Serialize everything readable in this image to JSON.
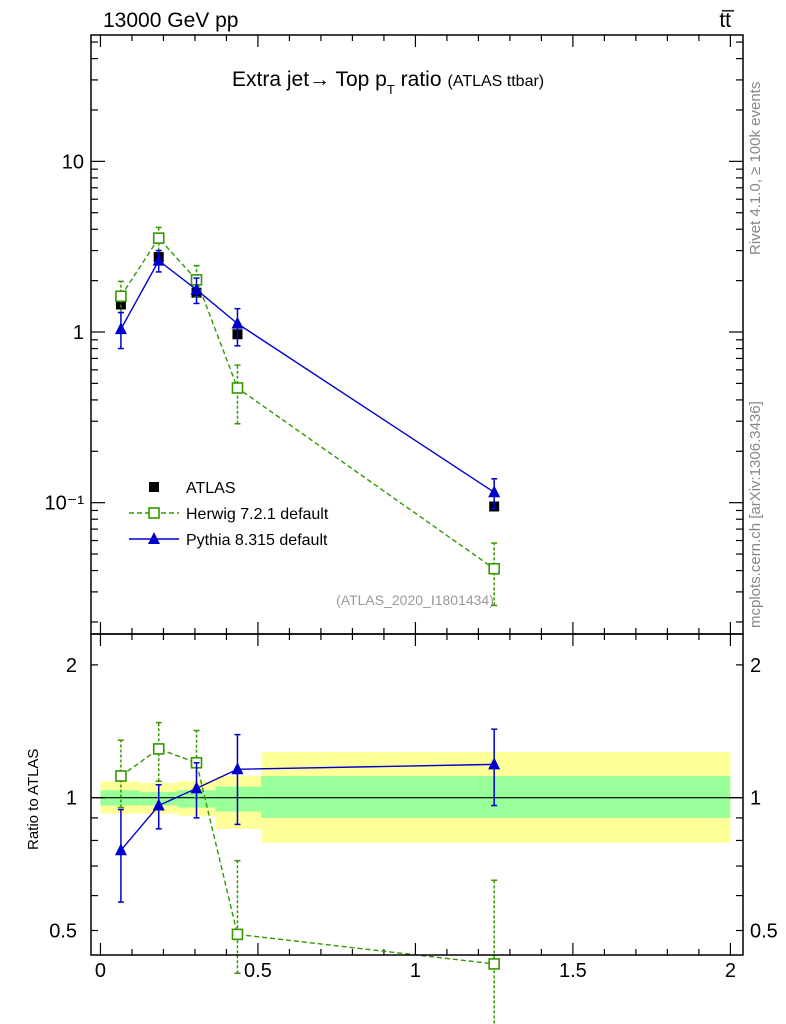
{
  "header": {
    "left": "13000 GeV pp",
    "right": "tt̅"
  },
  "side": {
    "rivet": "Rivet 4.1.0, ≥ 100k events",
    "mcplots": "mcplots.cern.ch [arXiv:1306.3436]"
  },
  "chart_data": [
    {
      "type": "scatter",
      "panel": "main",
      "title_main": "Extra jet→ Top p",
      "title_sub": "T",
      "title_rest": " ratio",
      "title_tag": "(ATLAS ttbar)",
      "analysis": "(ATLAS_2020_I1801434)",
      "yscale": "log",
      "ylim": [
        0.017,
        55
      ],
      "xlim": [
        -0.03,
        2.04
      ],
      "ytick_labels": [
        "10",
        "1",
        "10⁻¹"
      ],
      "ytick_values": [
        10,
        1,
        0.1
      ],
      "legend_position": "bottom-left",
      "x": [
        0.065,
        0.185,
        0.305,
        0.435,
        1.25
      ],
      "series": [
        {
          "name": "ATLAS",
          "color": "#000000",
          "marker": "filled-square",
          "values": [
            1.45,
            2.75,
            1.7,
            0.97,
            0.095
          ]
        },
        {
          "name": "Herwig 7.2.1 default",
          "color": "#339900",
          "marker": "open-square",
          "linestyle": "dashed",
          "values": [
            1.62,
            3.55,
            2.02,
            0.47,
            0.041
          ],
          "err_low": [
            1.3,
            3.0,
            1.6,
            0.29,
            0.025
          ],
          "err_high": [
            1.98,
            4.1,
            2.45,
            0.64,
            0.058
          ]
        },
        {
          "name": "Pythia 8.315 default",
          "color": "#0000cc",
          "marker": "filled-triangle",
          "linestyle": "solid",
          "values": [
            1.04,
            2.62,
            1.77,
            1.12,
            0.115
          ],
          "err_low": [
            0.8,
            2.25,
            1.47,
            0.83,
            0.092
          ],
          "err_high": [
            1.3,
            3.0,
            2.07,
            1.37,
            0.138
          ]
        }
      ]
    },
    {
      "type": "scatter",
      "panel": "ratio",
      "ylabel": "Ratio to ATLAS",
      "yscale": "log",
      "ylim": [
        0.44,
        2.35
      ],
      "xlim": [
        -0.03,
        2.04
      ],
      "ytick_labels": [
        "2",
        "1",
        "0.5"
      ],
      "ytick_values": [
        2,
        1,
        0.5
      ],
      "xtick_labels": [
        "0",
        "0.5",
        "1",
        "1.5",
        "2"
      ],
      "xtick_values": [
        0,
        0.5,
        1,
        1.5,
        2
      ],
      "bands": [
        {
          "x0": 0.0,
          "x1": 0.125,
          "yellow": [
            0.92,
            1.09
          ],
          "green": [
            0.96,
            1.04
          ]
        },
        {
          "x0": 0.125,
          "x1": 0.245,
          "yellow": [
            0.92,
            1.08
          ],
          "green": [
            0.96,
            1.03
          ]
        },
        {
          "x0": 0.245,
          "x1": 0.365,
          "yellow": [
            0.91,
            1.09
          ],
          "green": [
            0.95,
            1.04
          ]
        },
        {
          "x0": 0.365,
          "x1": 0.51,
          "yellow": [
            0.85,
            1.12
          ],
          "green": [
            0.93,
            1.06
          ]
        },
        {
          "x0": 0.51,
          "x1": 2.0,
          "yellow": [
            0.79,
            1.27
          ],
          "green": [
            0.9,
            1.12
          ]
        }
      ],
      "x": [
        0.065,
        0.185,
        0.305,
        0.435,
        1.25
      ],
      "series": [
        {
          "name": "Herwig 7.2.1 default",
          "color": "#339900",
          "values": [
            1.12,
            1.29,
            1.2,
            0.49,
            0.42
          ],
          "err_low": [
            0.95,
            1.09,
            1.0,
            0.4,
            0.3
          ],
          "err_high": [
            1.35,
            1.48,
            1.42,
            0.72,
            0.65
          ]
        },
        {
          "name": "Pythia 8.315 default",
          "color": "#0000cc",
          "values": [
            0.76,
            0.96,
            1.05,
            1.16,
            1.19
          ],
          "err_low": [
            0.58,
            0.85,
            0.9,
            0.87,
            0.96
          ],
          "err_high": [
            0.94,
            1.07,
            1.2,
            1.39,
            1.43
          ]
        }
      ]
    }
  ]
}
